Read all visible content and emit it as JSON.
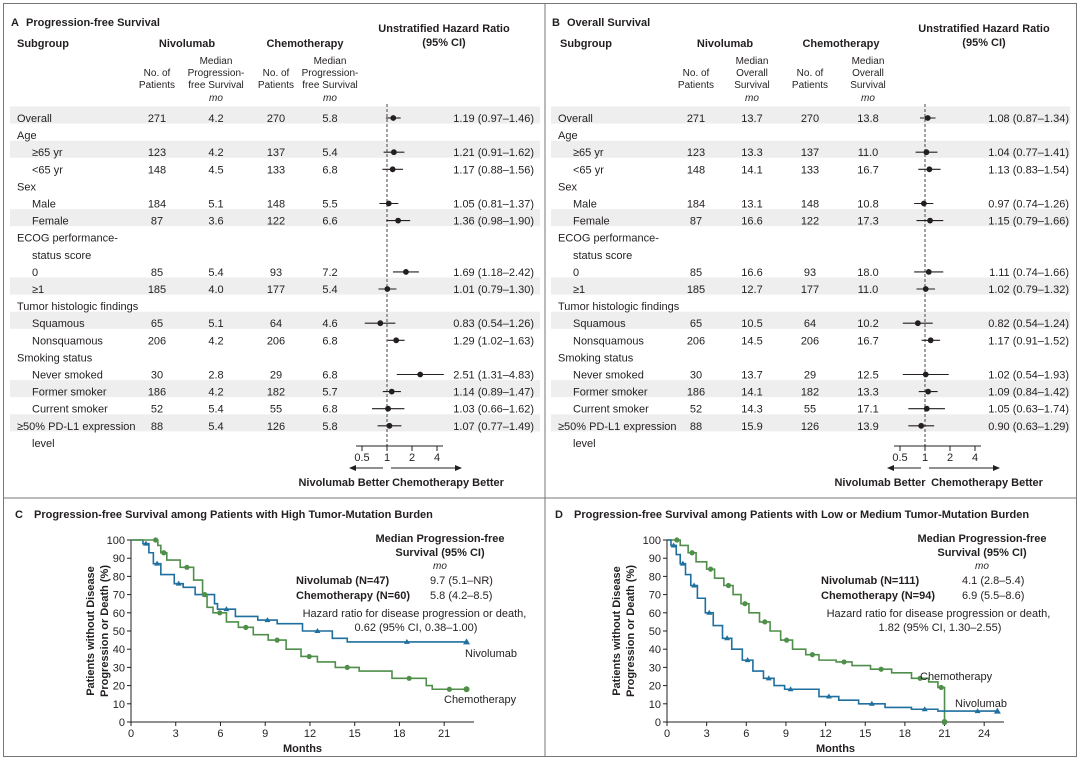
{
  "colors": {
    "nivolumab": "#1f6f9f",
    "chemotherapy": "#4f8f4a",
    "shade": "#eeeeee",
    "frame": "#777777"
  },
  "panelA": {
    "letter": "A",
    "title": "Progression-free Survival",
    "subgroup_header": "Subgroup",
    "group1": "Nivolumab",
    "group2": "Chemotherapy",
    "col_n": "No. of Patients",
    "col_median": "Median Progression-free Survival",
    "unit": "mo",
    "hr_header": "Unstratified Hazard Ratio (95% CI)",
    "better_left": "Nivolumab Better",
    "better_right": "Chemotherapy Better",
    "ticks": [
      "0.5",
      "1",
      "2",
      "4"
    ]
  },
  "panelB": {
    "letter": "B",
    "title": "Overall Survival",
    "subgroup_header": "Subgroup",
    "group1": "Nivolumab",
    "group2": "Chemotherapy",
    "col_n": "No. of Patients",
    "col_median": "Median Overall Survival",
    "unit": "mo",
    "hr_header": "Unstratified Hazard Ratio (95% CI)",
    "better_left": "Nivolumab Better",
    "better_right": "Chemotherapy Better",
    "ticks": [
      "0.5",
      "1",
      "2",
      "4"
    ]
  },
  "panelC": {
    "letter": "C",
    "title": "Progression-free Survival among Patients with High Tumor-Mutation Burden",
    "ylabel": "Patients without Disease Progression or Death (%)",
    "xlabel": "Months",
    "legend_title": "Median Progression-free Survival (95% CI)",
    "legend_unit": "mo",
    "arm1": "Nivolumab (N=47)",
    "arm1_val": "9.7 (5.1–NR)",
    "arm2": "Chemotherapy (N=60)",
    "arm2_val": "5.8 (4.2–8.5)",
    "hr_text": "Hazard ratio for disease progression or death, 0.62 (95% CI, 0.38–1.00)",
    "curve1": "Nivolumab",
    "curve2": "Chemotherapy"
  },
  "panelD": {
    "letter": "D",
    "title": "Progression-free Survival among Patients with Low or Medium Tumor-Mutation Burden",
    "ylabel": "Patients without Disease Progression or Death (%)",
    "xlabel": "Months",
    "legend_title": "Median Progression-free Survival (95% CI)",
    "legend_unit": "mo",
    "arm1": "Nivolumab (N=111)",
    "arm1_val": "4.1 (2.8–5.4)",
    "arm2": "Chemotherapy (N=94)",
    "arm2_val": "6.9 (5.5–8.6)",
    "hr_text": "Hazard ratio for disease progression or death, 1.82 (95% CI, 1.30–2.55)",
    "curve1": "Chemotherapy",
    "curve2": "Nivolumab"
  },
  "chart_data": [
    {
      "type": "forest",
      "panel": "A",
      "title": "Progression-free Survival",
      "xscale": "log",
      "xlim": [
        0.5,
        4
      ],
      "reference": 1,
      "rows": [
        {
          "label": "Overall",
          "kind": "row",
          "n1": "271",
          "m1": "4.2",
          "n2": "270",
          "m2": "5.8",
          "hr": 1.19,
          "lo": 0.97,
          "hi": 1.46,
          "text": "1.19 (0.97–1.46)"
        },
        {
          "label": "Age",
          "kind": "head"
        },
        {
          "label": "≥65 yr",
          "kind": "row",
          "n1": "123",
          "m1": "4.2",
          "n2": "137",
          "m2": "5.4",
          "hr": 1.21,
          "lo": 0.91,
          "hi": 1.62,
          "text": "1.21 (0.91–1.62)"
        },
        {
          "label": "<65 yr",
          "kind": "row",
          "n1": "148",
          "m1": "4.5",
          "n2": "133",
          "m2": "6.8",
          "hr": 1.17,
          "lo": 0.88,
          "hi": 1.56,
          "text": "1.17 (0.88–1.56)"
        },
        {
          "label": "Sex",
          "kind": "head"
        },
        {
          "label": "Male",
          "kind": "row",
          "n1": "184",
          "m1": "5.1",
          "n2": "148",
          "m2": "5.5",
          "hr": 1.05,
          "lo": 0.81,
          "hi": 1.37,
          "text": "1.05 (0.81–1.37)"
        },
        {
          "label": "Female",
          "kind": "row",
          "n1": "87",
          "m1": "3.6",
          "n2": "122",
          "m2": "6.6",
          "hr": 1.36,
          "lo": 0.98,
          "hi": 1.9,
          "text": "1.36 (0.98–1.90)"
        },
        {
          "label": "ECOG performance-",
          "kind": "head"
        },
        {
          "label": "status score",
          "kind": "head2"
        },
        {
          "label": "0",
          "kind": "row",
          "n1": "85",
          "m1": "5.4",
          "n2": "93",
          "m2": "7.2",
          "hr": 1.69,
          "lo": 1.18,
          "hi": 2.42,
          "text": "1.69 (1.18–2.42)"
        },
        {
          "label": "≥1",
          "kind": "row",
          "n1": "185",
          "m1": "4.0",
          "n2": "177",
          "m2": "5.4",
          "hr": 1.01,
          "lo": 0.79,
          "hi": 1.3,
          "text": "1.01 (0.79–1.30)"
        },
        {
          "label": "Tumor histologic findings",
          "kind": "head"
        },
        {
          "label": "Squamous",
          "kind": "row",
          "n1": "65",
          "m1": "5.1",
          "n2": "64",
          "m2": "4.6",
          "hr": 0.83,
          "lo": 0.54,
          "hi": 1.26,
          "text": "0.83 (0.54–1.26)"
        },
        {
          "label": "Nonsquamous",
          "kind": "row",
          "n1": "206",
          "m1": "4.2",
          "n2": "206",
          "m2": "6.8",
          "hr": 1.29,
          "lo": 1.02,
          "hi": 1.63,
          "text": "1.29 (1.02–1.63)"
        },
        {
          "label": "Smoking status",
          "kind": "head"
        },
        {
          "label": "Never smoked",
          "kind": "row",
          "n1": "30",
          "m1": "2.8",
          "n2": "29",
          "m2": "6.8",
          "hr": 2.51,
          "lo": 1.31,
          "hi": 4.83,
          "text": "2.51 (1.31–4.83)"
        },
        {
          "label": "Former smoker",
          "kind": "row",
          "n1": "186",
          "m1": "4.2",
          "n2": "182",
          "m2": "5.7",
          "hr": 1.14,
          "lo": 0.89,
          "hi": 1.47,
          "text": "1.14 (0.89–1.47)"
        },
        {
          "label": "Current smoker",
          "kind": "row",
          "n1": "52",
          "m1": "5.4",
          "n2": "55",
          "m2": "6.8",
          "hr": 1.03,
          "lo": 0.66,
          "hi": 1.62,
          "text": "1.03 (0.66–1.62)"
        },
        {
          "label": "≥50% PD-L1 expression",
          "kind": "row",
          "n1": "88",
          "m1": "5.4",
          "n2": "126",
          "m2": "5.8",
          "hr": 1.07,
          "lo": 0.77,
          "hi": 1.49,
          "text": "1.07 (0.77–1.49)"
        },
        {
          "label": "level",
          "kind": "cont"
        }
      ]
    },
    {
      "type": "forest",
      "panel": "B",
      "title": "Overall Survival",
      "xscale": "log",
      "xlim": [
        0.5,
        4
      ],
      "reference": 1,
      "rows": [
        {
          "label": "Overall",
          "kind": "row",
          "n1": "271",
          "m1": "13.7",
          "n2": "270",
          "m2": "13.8",
          "hr": 1.08,
          "lo": 0.87,
          "hi": 1.34,
          "text": "1.08 (0.87–1.34)"
        },
        {
          "label": "Age",
          "kind": "head"
        },
        {
          "label": "≥65 yr",
          "kind": "row",
          "n1": "123",
          "m1": "13.3",
          "n2": "137",
          "m2": "11.0",
          "hr": 1.04,
          "lo": 0.77,
          "hi": 1.41,
          "text": "1.04 (0.77–1.41)"
        },
        {
          "label": "<65 yr",
          "kind": "row",
          "n1": "148",
          "m1": "14.1",
          "n2": "133",
          "m2": "16.7",
          "hr": 1.13,
          "lo": 0.83,
          "hi": 1.54,
          "text": "1.13 (0.83–1.54)"
        },
        {
          "label": "Sex",
          "kind": "head"
        },
        {
          "label": "Male",
          "kind": "row",
          "n1": "184",
          "m1": "13.1",
          "n2": "148",
          "m2": "10.8",
          "hr": 0.97,
          "lo": 0.74,
          "hi": 1.26,
          "text": "0.97 (0.74–1.26)"
        },
        {
          "label": "Female",
          "kind": "row",
          "n1": "87",
          "m1": "16.6",
          "n2": "122",
          "m2": "17.3",
          "hr": 1.15,
          "lo": 0.79,
          "hi": 1.66,
          "text": "1.15 (0.79–1.66)"
        },
        {
          "label": "ECOG performance-",
          "kind": "head"
        },
        {
          "label": "status score",
          "kind": "head2"
        },
        {
          "label": "0",
          "kind": "row",
          "n1": "85",
          "m1": "16.6",
          "n2": "93",
          "m2": "18.0",
          "hr": 1.11,
          "lo": 0.74,
          "hi": 1.66,
          "text": "1.11 (0.74–1.66)"
        },
        {
          "label": "≥1",
          "kind": "row",
          "n1": "185",
          "m1": "12.7",
          "n2": "177",
          "m2": "11.0",
          "hr": 1.02,
          "lo": 0.79,
          "hi": 1.32,
          "text": "1.02 (0.79–1.32)"
        },
        {
          "label": "Tumor histologic findings",
          "kind": "head"
        },
        {
          "label": "Squamous",
          "kind": "row",
          "n1": "65",
          "m1": "10.5",
          "n2": "64",
          "m2": "10.2",
          "hr": 0.82,
          "lo": 0.54,
          "hi": 1.24,
          "text": "0.82 (0.54–1.24)"
        },
        {
          "label": "Nonsquamous",
          "kind": "row",
          "n1": "206",
          "m1": "14.5",
          "n2": "206",
          "m2": "16.7",
          "hr": 1.17,
          "lo": 0.91,
          "hi": 1.52,
          "text": "1.17 (0.91–1.52)"
        },
        {
          "label": "Smoking status",
          "kind": "head"
        },
        {
          "label": "Never smoked",
          "kind": "row",
          "n1": "30",
          "m1": "13.7",
          "n2": "29",
          "m2": "12.5",
          "hr": 1.02,
          "lo": 0.54,
          "hi": 1.93,
          "text": "1.02 (0.54–1.93)"
        },
        {
          "label": "Former smoker",
          "kind": "row",
          "n1": "186",
          "m1": "14.1",
          "n2": "182",
          "m2": "13.3",
          "hr": 1.09,
          "lo": 0.84,
          "hi": 1.42,
          "text": "1.09 (0.84–1.42)"
        },
        {
          "label": "Current smoker",
          "kind": "row",
          "n1": "52",
          "m1": "14.3",
          "n2": "55",
          "m2": "17.1",
          "hr": 1.05,
          "lo": 0.63,
          "hi": 1.74,
          "text": "1.05 (0.63–1.74)"
        },
        {
          "label": "≥50% PD-L1 expression",
          "kind": "row",
          "n1": "88",
          "m1": "15.9",
          "n2": "126",
          "m2": "13.9",
          "hr": 0.9,
          "lo": 0.63,
          "hi": 1.29,
          "text": "0.90 (0.63–1.29)"
        },
        {
          "label": "level",
          "kind": "cont"
        }
      ]
    },
    {
      "type": "line",
      "panel": "C",
      "title": "Progression-free Survival among Patients with High Tumor-Mutation Burden",
      "xlabel": "Months",
      "ylabel": "Patients without Disease Progression or Death (%)",
      "xlim": [
        0,
        23
      ],
      "ylim": [
        0,
        100
      ],
      "xticks": [
        0,
        3,
        6,
        9,
        12,
        15,
        18,
        21
      ],
      "yticks": [
        0,
        10,
        20,
        30,
        40,
        50,
        60,
        70,
        80,
        90,
        100
      ],
      "series": [
        {
          "name": "Nivolumab",
          "color": "#1f6f9f",
          "x": [
            0,
            0.8,
            1.2,
            1.5,
            2.0,
            2.9,
            3.5,
            4.3,
            5.6,
            5.8,
            7.0,
            8.5,
            9.8,
            11.5,
            13.5,
            14.5,
            22.5
          ],
          "y": [
            100,
            98,
            93,
            87,
            81,
            76,
            74,
            70,
            65,
            62,
            58,
            56,
            54,
            50,
            46,
            44,
            44
          ]
        },
        {
          "name": "Chemotherapy",
          "color": "#4f8f4a",
          "x": [
            0,
            1.5,
            1.8,
            2.0,
            2.4,
            3.3,
            4.2,
            4.8,
            5.1,
            5.5,
            6.4,
            7.2,
            8.2,
            9.2,
            10.4,
            11.4,
            12.5,
            13.7,
            15.3,
            17.5,
            19.8,
            20.2,
            22.5
          ],
          "y": [
            100,
            100,
            97,
            93,
            89,
            85,
            78,
            70,
            63,
            60,
            55,
            52,
            48,
            45,
            40,
            36,
            33,
            30,
            28,
            24,
            20,
            18,
            18
          ]
        }
      ]
    },
    {
      "type": "line",
      "panel": "D",
      "title": "Progression-free Survival among Patients with Low or Medium Tumor-Mutation Burden",
      "xlabel": "Months",
      "ylabel": "Patients without Disease Progression or Death (%)",
      "xlim": [
        0,
        25.5
      ],
      "ylim": [
        0,
        100
      ],
      "xticks": [
        0,
        3,
        6,
        9,
        12,
        15,
        18,
        21,
        24
      ],
      "yticks": [
        0,
        10,
        20,
        30,
        40,
        50,
        60,
        70,
        80,
        90,
        100
      ],
      "series": [
        {
          "name": "Chemotherapy",
          "color": "#4f8f4a",
          "x": [
            0,
            0.5,
            1.0,
            1.6,
            2.2,
            3.0,
            3.6,
            4.3,
            5.0,
            5.6,
            6.2,
            7.0,
            7.8,
            8.6,
            9.5,
            10.5,
            11.5,
            12.8,
            14.0,
            15.4,
            17.0,
            18.5,
            19.8,
            20.5,
            21.0
          ],
          "y": [
            100,
            100,
            97,
            93,
            88,
            84,
            79,
            75,
            70,
            65,
            60,
            55,
            50,
            45,
            40,
            37,
            34,
            33,
            31,
            29,
            27,
            24,
            22,
            19,
            0
          ]
        },
        {
          "name": "Nivolumab",
          "color": "#1f6f9f",
          "x": [
            0,
            0.3,
            0.7,
            1.0,
            1.4,
            1.8,
            2.3,
            2.9,
            3.5,
            4.2,
            4.9,
            5.7,
            6.5,
            7.3,
            8.1,
            8.9,
            9.8,
            11.5,
            13.0,
            14.5,
            16.5,
            18.5,
            20.5,
            22.0,
            25.0
          ],
          "y": [
            100,
            97,
            92,
            87,
            81,
            75,
            68,
            60,
            53,
            46,
            40,
            34,
            28,
            24,
            20,
            18,
            18,
            14,
            12,
            10,
            8,
            7,
            6,
            6,
            6
          ]
        }
      ]
    }
  ]
}
